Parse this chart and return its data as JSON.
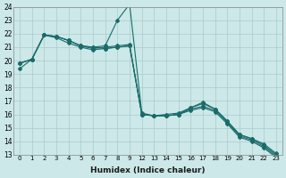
{
  "xlabel": "Humidex (Indice chaleur)",
  "xlabels": [
    "0",
    "1",
    "2",
    "3",
    "4",
    "5",
    "6",
    "7",
    "8",
    "9",
    "12",
    "13",
    "14",
    "15",
    "16",
    "17",
    "18",
    "19",
    "20",
    "21",
    "22",
    "23"
  ],
  "ylim": [
    13,
    24
  ],
  "yticks": [
    13,
    14,
    15,
    16,
    17,
    18,
    19,
    20,
    21,
    22,
    23,
    24
  ],
  "bg_color": "#cce8e8",
  "grid_color": "#aacaca",
  "line_color": "#1a6b6b",
  "lines": [
    {
      "y": [
        19.8,
        20.1,
        21.9,
        21.8,
        21.5,
        21.1,
        21.0,
        20.9,
        21.0,
        21.1,
        16.0,
        15.9,
        15.9,
        16.0,
        16.4,
        16.6,
        16.3,
        15.4,
        14.4,
        14.1,
        13.6,
        12.9
      ]
    },
    {
      "y": [
        19.8,
        20.1,
        21.9,
        21.8,
        21.5,
        21.1,
        20.9,
        21.0,
        21.1,
        21.2,
        16.0,
        15.9,
        15.9,
        16.0,
        16.5,
        16.8,
        16.4,
        15.5,
        14.5,
        14.2,
        13.8,
        13.1
      ]
    },
    {
      "y": [
        19.8,
        20.1,
        21.9,
        21.8,
        21.5,
        21.1,
        21.0,
        21.1,
        23.0,
        24.2,
        16.1,
        15.9,
        16.0,
        16.1,
        16.5,
        16.9,
        16.4,
        15.5,
        14.5,
        14.2,
        13.7,
        13.0
      ]
    },
    {
      "y": [
        19.4,
        20.1,
        21.9,
        21.7,
        21.3,
        21.0,
        20.8,
        20.9,
        21.0,
        21.1,
        16.0,
        15.9,
        15.9,
        16.0,
        16.3,
        16.5,
        16.2,
        15.3,
        14.3,
        14.0,
        13.5,
        12.8
      ]
    }
  ]
}
